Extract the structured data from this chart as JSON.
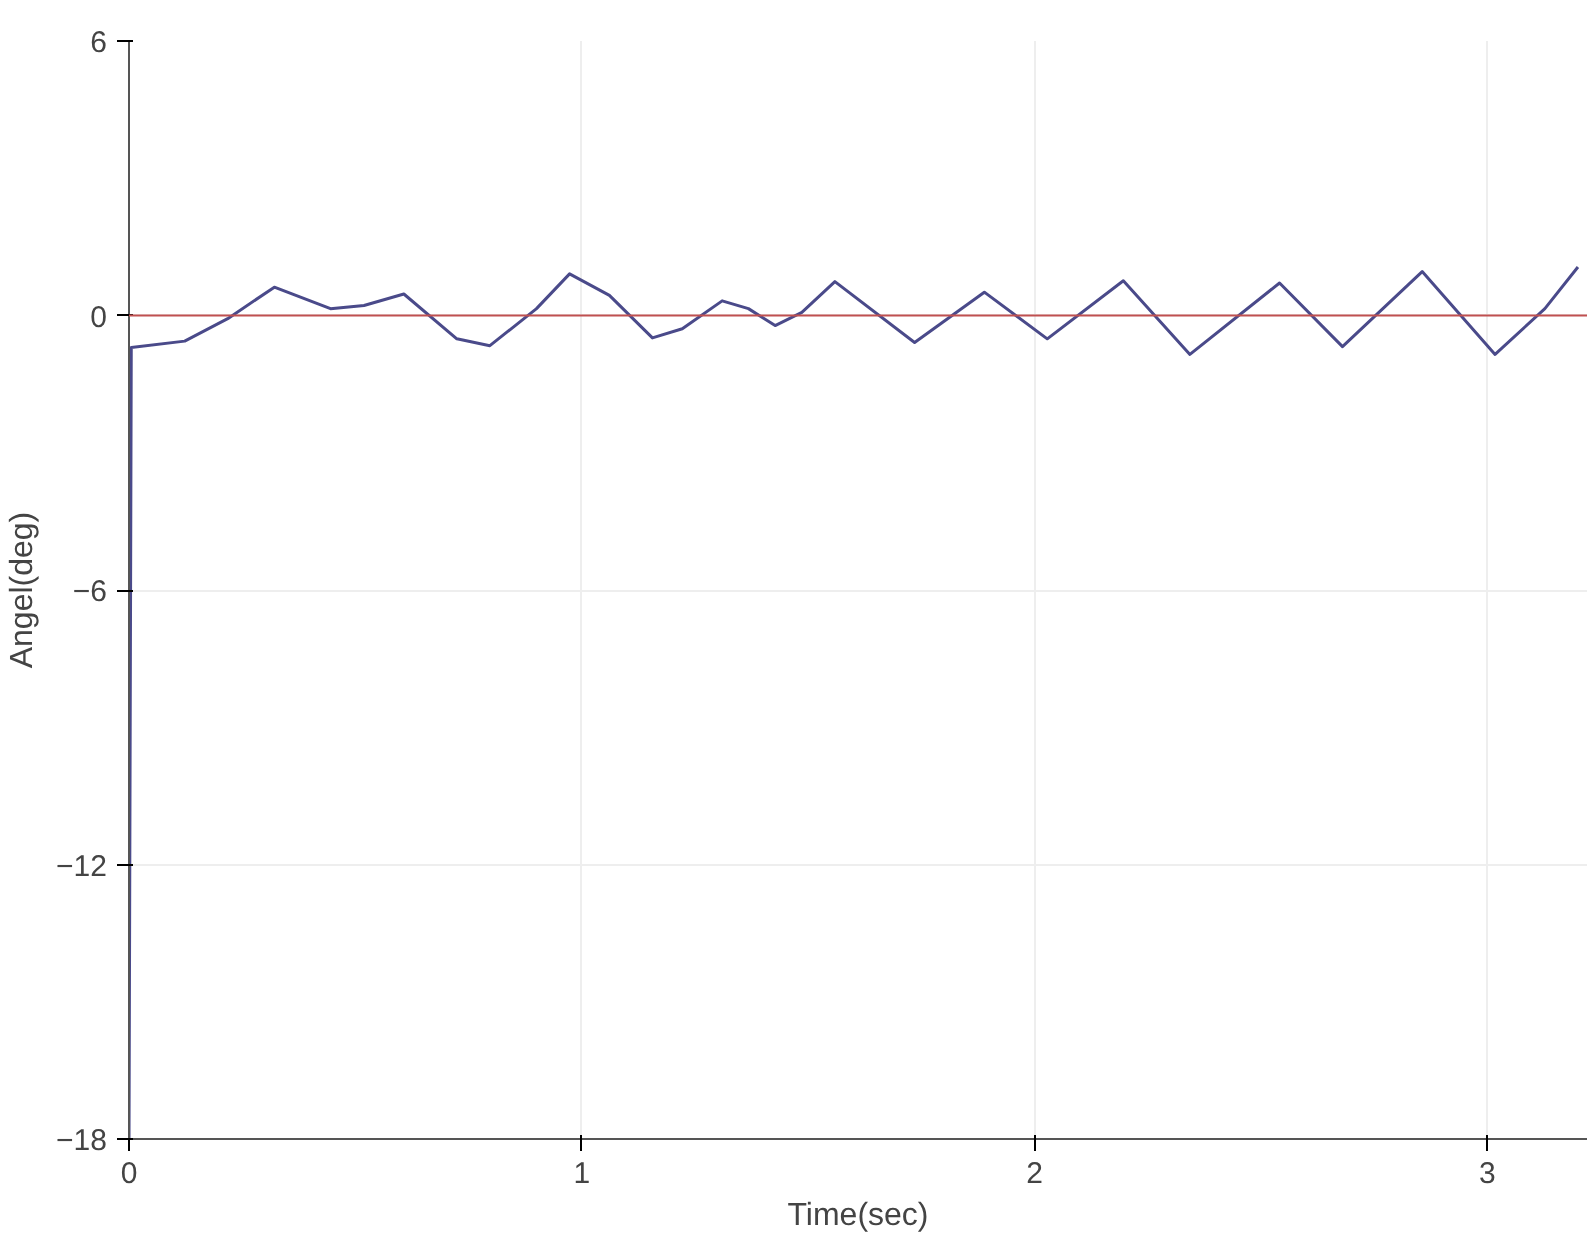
{
  "chart_data": {
    "type": "line",
    "xlabel": "Time(sec)",
    "ylabel": "Angel(deg)",
    "x": [
      0,
      0.005,
      0.123,
      0.218,
      0.321,
      0.445,
      0.519,
      0.607,
      0.724,
      0.797,
      0.9,
      0.973,
      1.061,
      1.156,
      1.222,
      1.31,
      1.368,
      1.427,
      1.486,
      1.559,
      1.735,
      1.889,
      2.028,
      2.196,
      2.343,
      2.541,
      2.68,
      2.856,
      3.017,
      3.127,
      3.2
    ],
    "series": [
      {
        "color": "#4a4a8a",
        "values": [
          -18,
          -0.7,
          -0.56,
          -0.07,
          0.62,
          0.15,
          0.22,
          0.47,
          -0.51,
          -0.66,
          0.15,
          0.91,
          0.44,
          -0.49,
          -0.29,
          0.32,
          0.15,
          -0.22,
          0.07,
          0.74,
          -0.59,
          0.51,
          -0.51,
          0.76,
          -0.85,
          0.71,
          -0.68,
          0.96,
          -0.85,
          0.15,
          1.06
        ]
      }
    ],
    "xlim": [
      0,
      3.22
    ],
    "ylim": [
      -18,
      6
    ],
    "xticks": [
      0,
      1,
      2,
      3
    ],
    "yticks": [
      -18,
      -12,
      -6,
      0,
      6
    ],
    "ref_lines": [
      {
        "axis": "y",
        "value": 0,
        "color": "#c05050"
      }
    ],
    "grid": true
  }
}
